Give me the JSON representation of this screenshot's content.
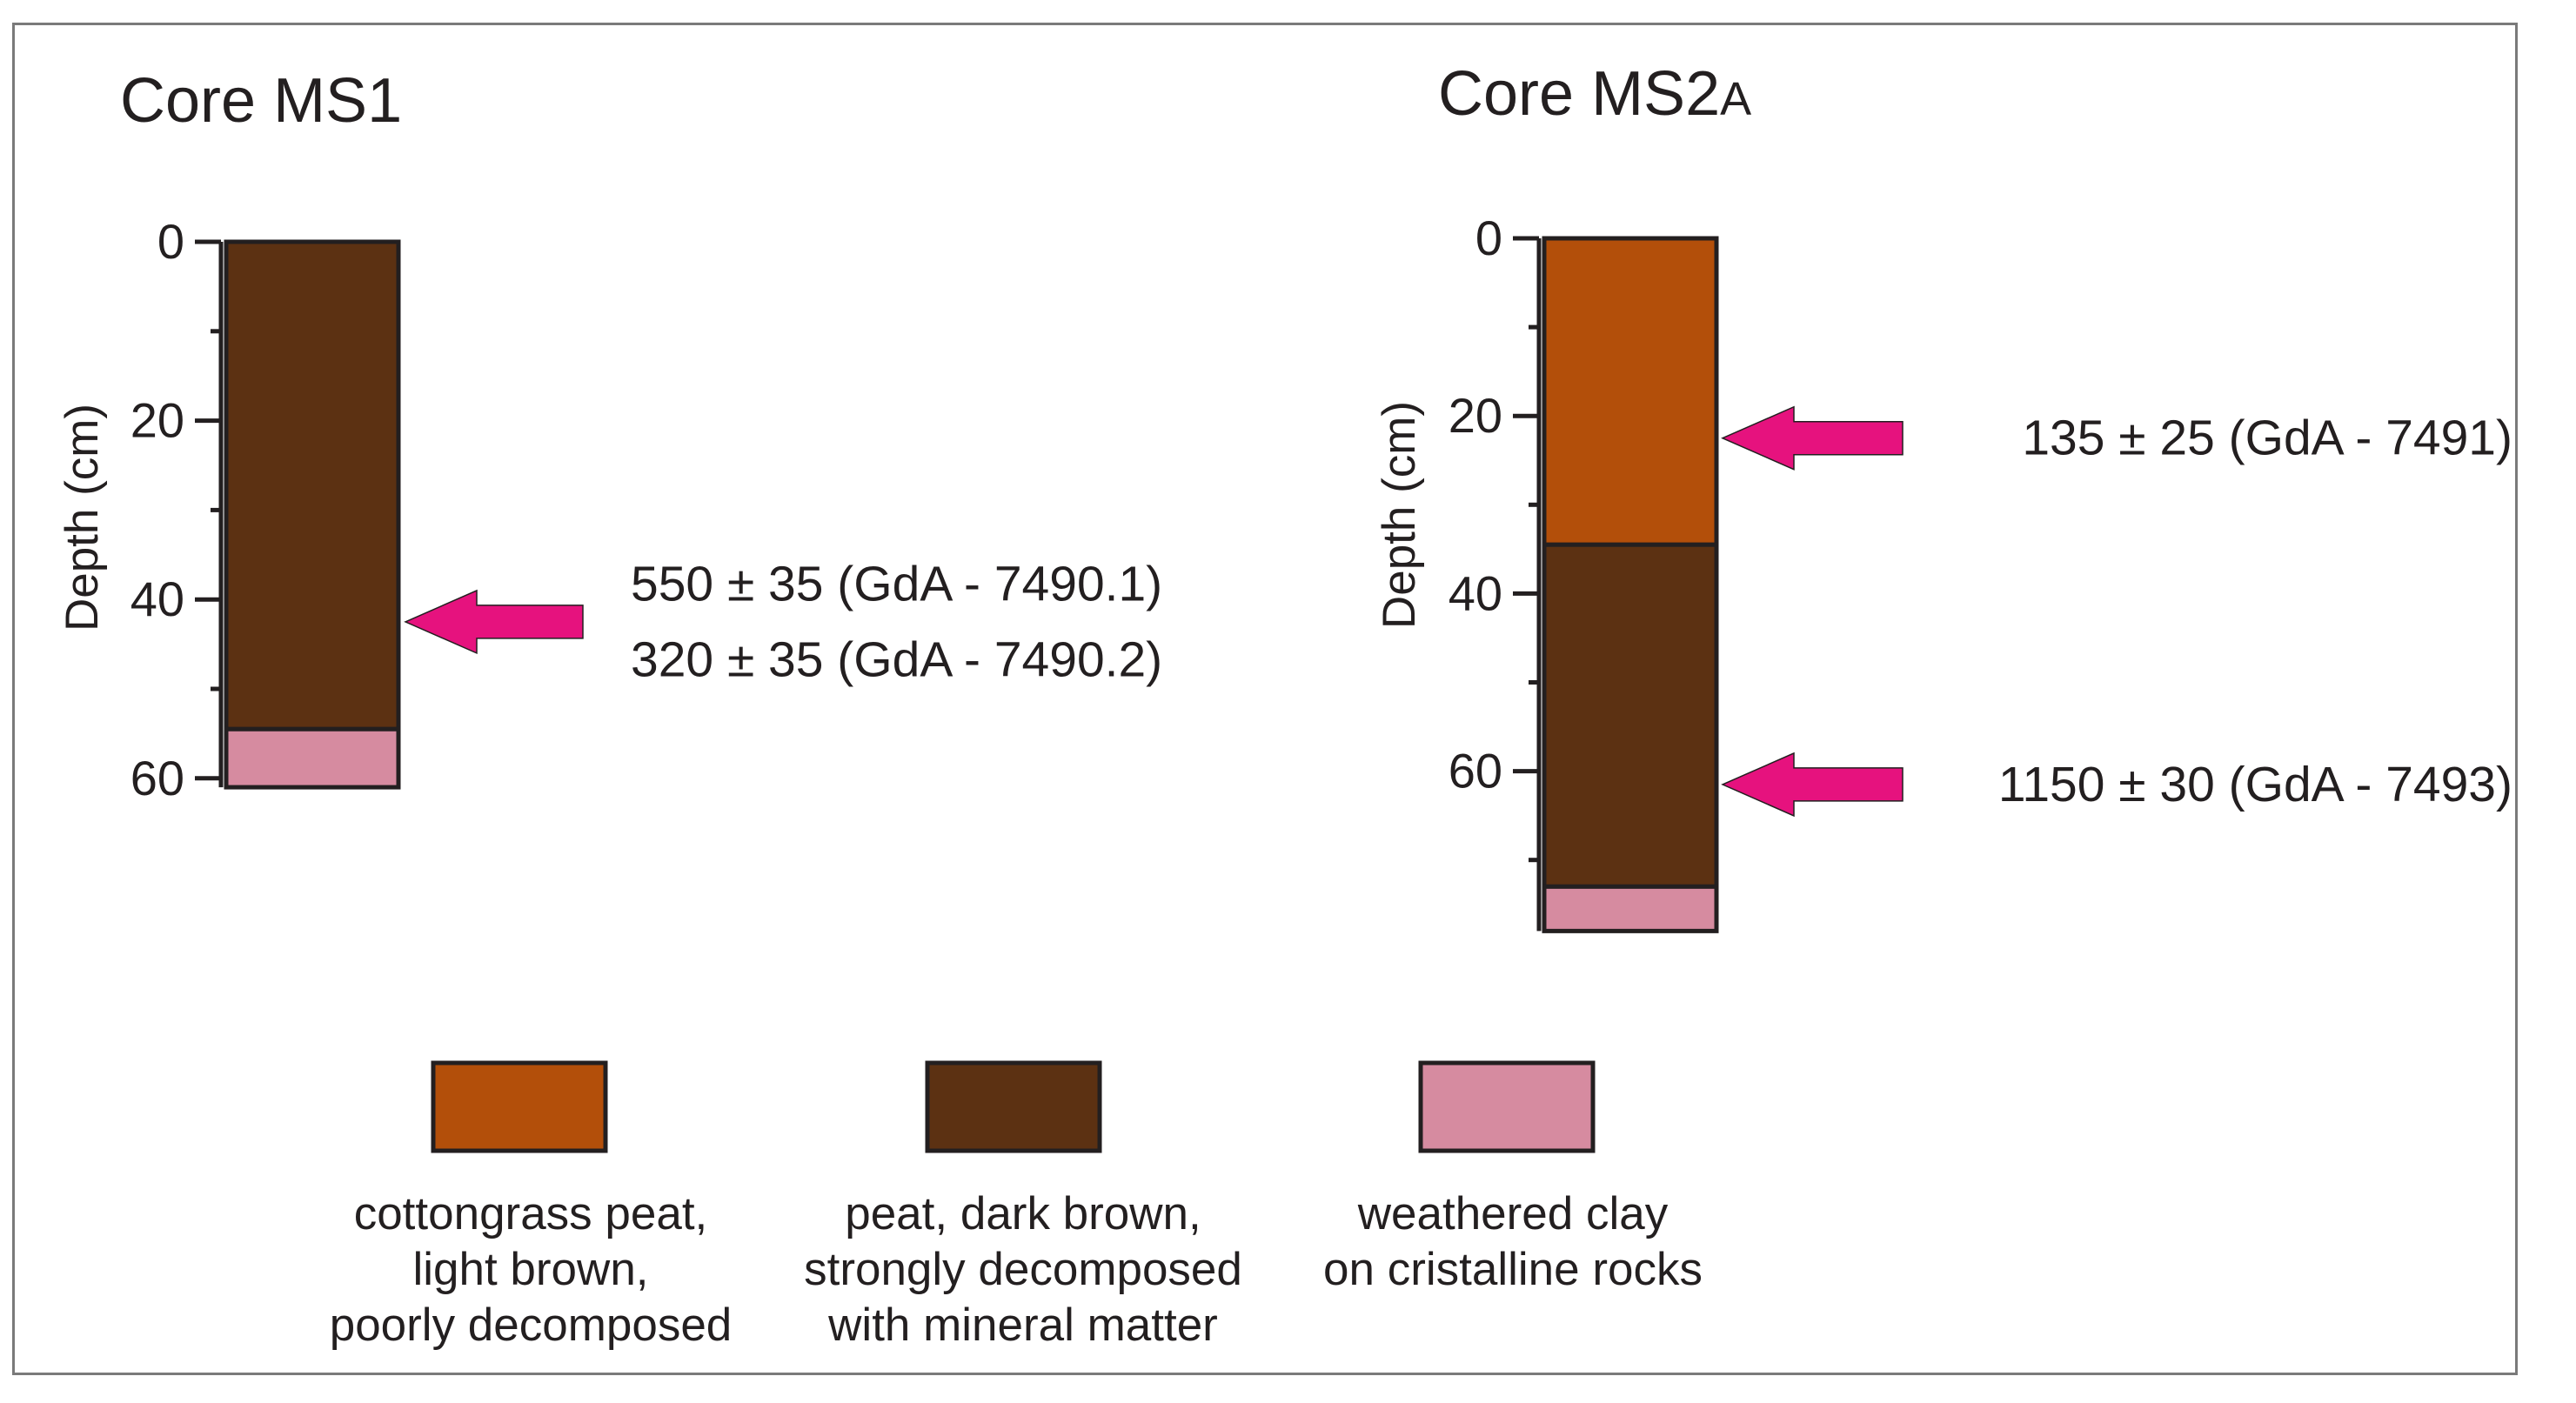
{
  "figure": {
    "cores": [
      {
        "title": "Core MS1",
        "axis_label": "Depth (cm)",
        "ticks": [
          "0",
          "20",
          "40",
          "60"
        ],
        "max_depth": 61,
        "layers": [
          {
            "material": "peat_dark",
            "from": 0,
            "to": 54.5
          },
          {
            "material": "clay",
            "from": 54.5,
            "to": 61
          }
        ],
        "dates": [
          {
            "depth": 42.5,
            "lines": [
              "550 ± 35 (GdA - 7490.1)",
              "320 ± 35 (GdA - 7490.2)"
            ]
          }
        ]
      },
      {
        "title_main": "Core MS2",
        "title_suffix": "A",
        "axis_label": "Depth (cm)",
        "ticks": [
          "0",
          "20",
          "40",
          "60"
        ],
        "max_depth": 78,
        "layers": [
          {
            "material": "cottongrass",
            "from": 0,
            "to": 34.5
          },
          {
            "material": "peat_dark",
            "from": 34.5,
            "to": 73
          },
          {
            "material": "clay",
            "from": 73,
            "to": 78
          }
        ],
        "dates": [
          {
            "depth": 22.5,
            "lines": [
              "135 ± 25 (GdA - 7491)"
            ]
          },
          {
            "depth": 61.5,
            "lines": [
              "1150 ± 30 (GdA - 7493)"
            ]
          }
        ]
      }
    ],
    "legend": [
      {
        "material": "cottongrass",
        "color": "#b34f0a",
        "lines": [
          "cottongrass peat,",
          "light brown,",
          "poorly decomposed"
        ]
      },
      {
        "material": "peat_dark",
        "color": "#5c3112",
        "lines": [
          "peat, dark brown,",
          "strongly decomposed",
          "with mineral matter"
        ]
      },
      {
        "material": "clay",
        "color": "#d68ba0",
        "lines": [
          "weathered clay",
          "on cristalline rocks"
        ]
      }
    ],
    "colors": {
      "arrow": "#e6127e",
      "outline": "#231f20",
      "frame": "#7a7a7a"
    }
  }
}
